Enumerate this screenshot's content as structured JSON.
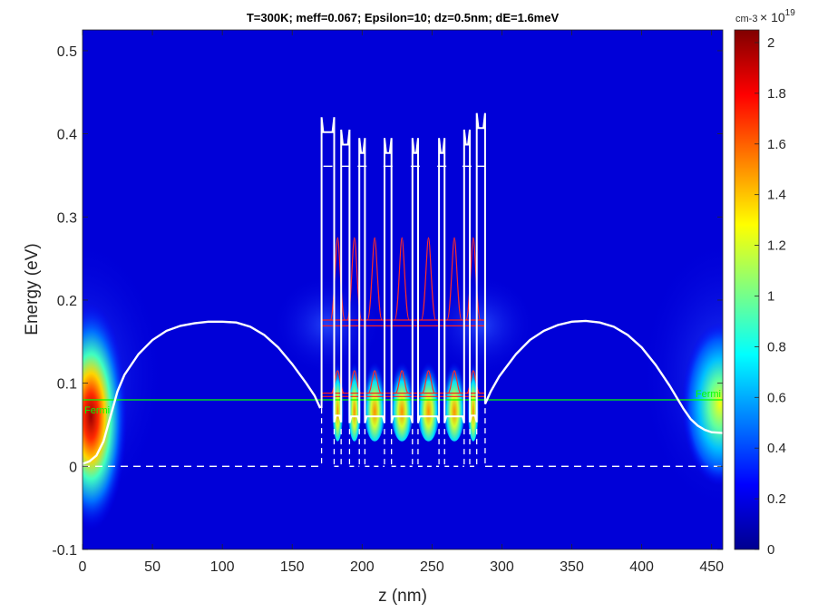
{
  "chart_data": {
    "type": "heatmap",
    "title": "T=300K; meff=0.067; Epsilon=10; dz=0.5nm; dE=1.6meV",
    "xlabel": "z (nm)",
    "ylabel": "Energy (eV)",
    "xlim": [
      0,
      458
    ],
    "ylim": [
      -0.1,
      0.525
    ],
    "xticks": [
      0,
      50,
      100,
      150,
      200,
      250,
      300,
      350,
      400,
      450
    ],
    "yticks": [
      -0.1,
      0,
      0.1,
      0.2,
      0.3,
      0.4,
      0.5
    ],
    "colorbar": {
      "label": "cm-3",
      "exponent_base": "× 10",
      "exponent": "19",
      "range": [
        0,
        2.05
      ],
      "ticks": [
        0,
        0.2,
        0.4,
        0.6,
        0.8,
        1,
        1.2,
        1.4,
        1.6,
        1.8,
        2
      ],
      "colormap": "jet"
    },
    "fermi_level": {
      "energy": 0.08,
      "label": "Fermi",
      "color": "#00ff00"
    },
    "conduction_band": {
      "color": "#ffffff",
      "z": [
        0,
        5,
        10,
        15,
        20,
        25,
        30,
        40,
        50,
        60,
        70,
        80,
        90,
        100,
        110,
        120,
        130,
        140,
        150,
        160,
        166,
        170
      ],
      "e": [
        0.003,
        0.006,
        0.013,
        0.03,
        0.06,
        0.09,
        0.11,
        0.135,
        0.152,
        0.163,
        0.169,
        0.172,
        0.174,
        0.174,
        0.173,
        0.168,
        0.158,
        0.143,
        0.123,
        0.1,
        0.085,
        0.07
      ]
    },
    "conduction_band_right": {
      "color": "#ffffff",
      "z": [
        288,
        292,
        298,
        310,
        320,
        330,
        340,
        350,
        360,
        370,
        380,
        390,
        400,
        410,
        420,
        425,
        430,
        435,
        440,
        445,
        450,
        458
      ],
      "e": [
        0.075,
        0.09,
        0.108,
        0.135,
        0.152,
        0.163,
        0.17,
        0.174,
        0.175,
        0.173,
        0.168,
        0.158,
        0.143,
        0.122,
        0.097,
        0.083,
        0.069,
        0.057,
        0.049,
        0.044,
        0.041,
        0.04
      ]
    },
    "quantum_wells": [
      {
        "z": [
          180,
          185
        ],
        "bottom": 0.053
      },
      {
        "z": [
          191,
          198
        ],
        "bottom": 0.052
      },
      {
        "z": [
          202,
          216
        ],
        "bottom": 0.052
      },
      {
        "z": [
          221,
          236
        ],
        "bottom": 0.052
      },
      {
        "z": [
          240,
          255
        ],
        "bottom": 0.052
      },
      {
        "z": [
          259,
          273
        ],
        "bottom": 0.052
      },
      {
        "z": [
          277,
          282
        ],
        "bottom": 0.053
      }
    ],
    "barriers": [
      {
        "z": [
          171,
          180
        ],
        "top": 0.42
      },
      {
        "z": [
          185,
          191
        ],
        "top": 0.405
      },
      {
        "z": [
          198,
          202
        ],
        "top": 0.395
      },
      {
        "z": [
          216,
          221
        ],
        "top": 0.395
      },
      {
        "z": [
          236,
          240
        ],
        "top": 0.395
      },
      {
        "z": [
          255,
          259
        ],
        "top": 0.395
      },
      {
        "z": [
          273,
          277
        ],
        "top": 0.405
      },
      {
        "z": [
          282,
          288
        ],
        "top": 0.425
      }
    ],
    "subbands": [
      {
        "energy": 0.084,
        "color": "#ff2020"
      },
      {
        "energy": 0.088,
        "color": "#ff2020"
      },
      {
        "energy": 0.169,
        "color": "#ff2020"
      },
      {
        "energy": 0.176,
        "color": "#ff2020"
      }
    ],
    "barrier_dashes_energy": 0.361,
    "base_dashed_energy": 0.0
  }
}
